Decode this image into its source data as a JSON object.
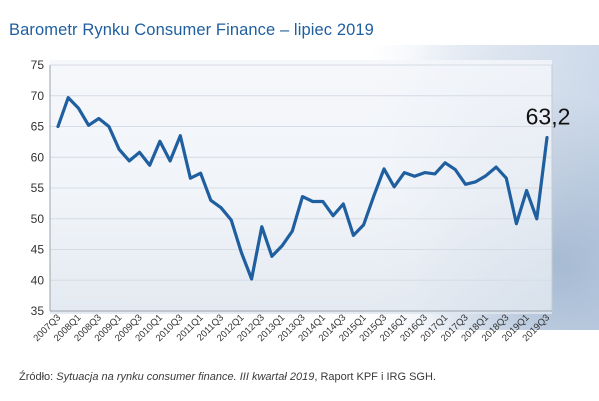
{
  "title": "Barometr Rynku Consumer Finance – lipiec 2019",
  "source": {
    "prefix": "Źródło: ",
    "italic": "Sytuacja na rynku consumer finance. III kwartał 2019",
    "suffix": ", Raport KPF i IRG SGH."
  },
  "chart_data": {
    "type": "line",
    "title": "Barometr Rynku Consumer Finance – lipiec 2019",
    "xlabel": "",
    "ylabel": "",
    "ylim": [
      35,
      75
    ],
    "yticks": [
      35,
      40,
      45,
      50,
      55,
      60,
      65,
      70,
      75
    ],
    "grid": true,
    "line_color": "#1f5f9f",
    "tick_labels_x": [
      "2007Q3",
      "2008Q1",
      "2008Q3",
      "2009Q1",
      "2009Q3",
      "2010Q1",
      "2010Q3",
      "2011Q1",
      "2011Q3",
      "2012Q1",
      "2012Q3",
      "2013Q1",
      "2013Q3",
      "2014Q1",
      "2014Q3",
      "2015Q1",
      "2015Q3",
      "2016Q1",
      "2016Q3",
      "2017Q1",
      "2017Q3",
      "2018Q1",
      "2018Q3",
      "2019Q1",
      "2019Q3"
    ],
    "x": [
      "2007Q3",
      "2007Q4",
      "2008Q1",
      "2008Q2",
      "2008Q3",
      "2008Q4",
      "2009Q1",
      "2009Q2",
      "2009Q3",
      "2009Q4",
      "2010Q1",
      "2010Q2",
      "2010Q3",
      "2010Q4",
      "2011Q1",
      "2011Q2",
      "2011Q3",
      "2011Q4",
      "2012Q1",
      "2012Q2",
      "2012Q3",
      "2012Q4",
      "2013Q1",
      "2013Q2",
      "2013Q3",
      "2013Q4",
      "2014Q1",
      "2014Q2",
      "2014Q3",
      "2014Q4",
      "2015Q1",
      "2015Q2",
      "2015Q3",
      "2015Q4",
      "2016Q1",
      "2016Q2",
      "2016Q3",
      "2016Q4",
      "2017Q1",
      "2017Q2",
      "2017Q3",
      "2017Q4",
      "2018Q1",
      "2018Q2",
      "2018Q3",
      "2018Q4",
      "2019Q1",
      "2019Q2",
      "2019Q3"
    ],
    "values": [
      65.0,
      69.7,
      68.0,
      65.2,
      66.3,
      65.0,
      61.3,
      59.4,
      60.8,
      58.7,
      62.6,
      59.4,
      63.5,
      56.6,
      57.4,
      53.0,
      51.8,
      49.8,
      44.5,
      40.2,
      48.7,
      43.9,
      45.6,
      48.0,
      53.6,
      52.8,
      52.8,
      50.5,
      52.4,
      47.3,
      49.0,
      53.7,
      58.1,
      55.2,
      57.5,
      56.9,
      57.5,
      57.3,
      59.1,
      58.0,
      55.6,
      56.0,
      57.0,
      58.4,
      56.6,
      49.2,
      54.6,
      50.0,
      63.2
    ],
    "annotation": "63,2"
  }
}
